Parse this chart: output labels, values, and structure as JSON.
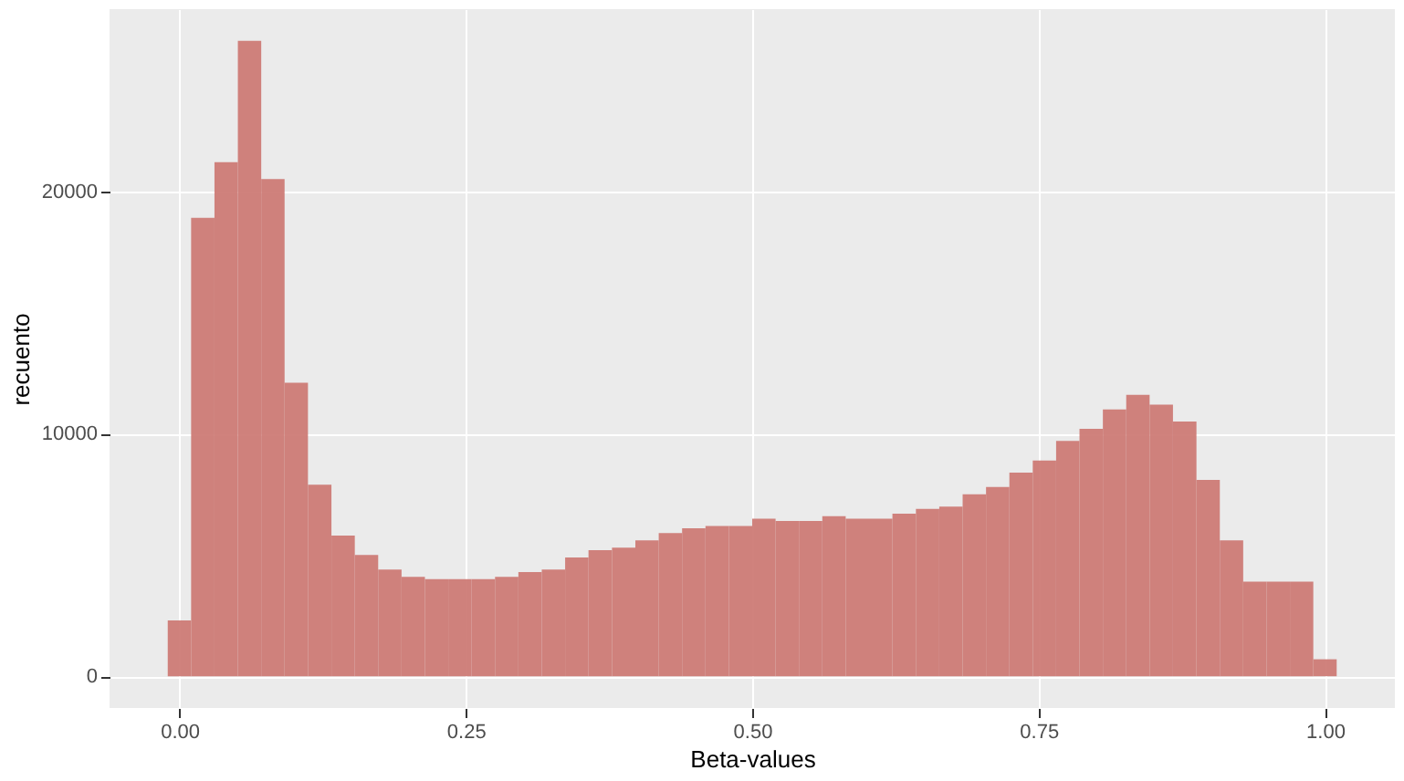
{
  "chart_data": {
    "type": "histogram",
    "xlabel": "Beta-values",
    "ylabel": "recuento",
    "bins": [
      -0.0102,
      0.0102,
      0.0306,
      0.051,
      0.0714,
      0.0918,
      0.1122,
      0.1327,
      0.1531,
      0.1735,
      0.1939,
      0.2143,
      0.2347,
      0.2551,
      0.2755,
      0.2959,
      0.3163,
      0.3367,
      0.3571,
      0.3776,
      0.398,
      0.4184,
      0.4388,
      0.4592,
      0.4796,
      0.5,
      0.5204,
      0.5408,
      0.5612,
      0.5816,
      0.602,
      0.6224,
      0.6429,
      0.6633,
      0.6837,
      0.7041,
      0.7245,
      0.7449,
      0.7653,
      0.7857,
      0.8061,
      0.8265,
      0.8469,
      0.8673,
      0.8878,
      0.9082,
      0.9286,
      0.949,
      0.9694,
      0.9898,
      1.0102
    ],
    "values": [
      2300,
      18900,
      21200,
      26200,
      20500,
      12100,
      7900,
      5800,
      5000,
      4400,
      4100,
      4000,
      4000,
      4000,
      4100,
      4300,
      4400,
      4900,
      5200,
      5300,
      5600,
      5900,
      6100,
      6200,
      6200,
      6500,
      6400,
      6400,
      6600,
      6500,
      6500,
      6700,
      6900,
      7000,
      7500,
      7800,
      8400,
      8900,
      9700,
      10200,
      11000,
      11600,
      11200,
      10500,
      8100,
      5600,
      3900,
      3900,
      3900,
      700
    ],
    "color": "#cd7b76",
    "xlim": [
      -0.061,
      1.061
    ],
    "xticks": [
      {
        "value": 0,
        "label": "0.00"
      },
      {
        "value": 0.25,
        "label": "0.25"
      },
      {
        "value": 0.5,
        "label": "0.50"
      },
      {
        "value": 0.75,
        "label": "0.75"
      },
      {
        "value": 1,
        "label": "1.00"
      }
    ],
    "ylim": [
      -1310,
      27510
    ],
    "yticks": [
      0,
      10000,
      20000
    ],
    "grid": true
  }
}
